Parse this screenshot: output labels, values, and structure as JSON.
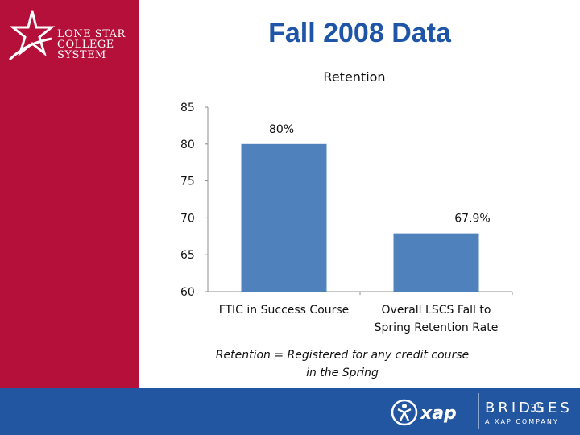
{
  "slide": {
    "title": "Fall 2008 Data",
    "slide_number": "35",
    "note_line1": "Retention = Registered for any credit course",
    "note_line2": "in the Spring"
  },
  "logo": {
    "line1": "LONE STAR",
    "line2": "COLLEGE",
    "line3": "SYSTEM"
  },
  "footer": {
    "brand": "BRIDGES",
    "tagline": "A XAP COMPANY"
  },
  "colors": {
    "sidebar": "#b5103a",
    "title": "#1f55a6",
    "bar": "#4f81bd",
    "footer": "#2356a0"
  },
  "chart_data": {
    "type": "bar",
    "title": "Retention",
    "categories": [
      [
        "FTIC in Success Course"
      ],
      [
        "Overall LSCS Fall to",
        "Spring Retention Rate"
      ]
    ],
    "values": [
      80,
      67.9
    ],
    "data_labels": [
      "80%",
      "67.9%"
    ],
    "ylim": [
      60,
      85
    ],
    "yticks": [
      85,
      80,
      75,
      70,
      65,
      60
    ],
    "grid": false
  }
}
